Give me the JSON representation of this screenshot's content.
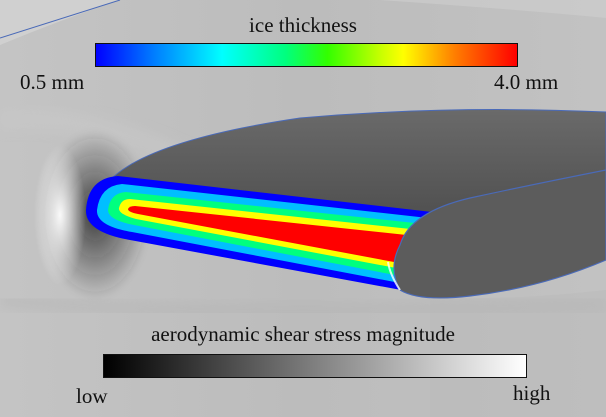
{
  "ice_legend": {
    "title": "ice thickness",
    "min_label": "0.5 mm",
    "max_label": "4.0 mm",
    "gradient_colors": [
      "#0000ff",
      "#00ffff",
      "#00ff7f",
      "#ffff00",
      "#ff8000",
      "#ff0000"
    ]
  },
  "shear_legend": {
    "title": "aerodynamic shear stress magnitude",
    "min_label": "low",
    "max_label": "high",
    "gradient_colors": [
      "#000000",
      "#ffffff"
    ]
  },
  "scene": {
    "background_color": "#bdbdbd",
    "wing_color": "#595959",
    "wing_edge_color": "#4a6ab8"
  }
}
